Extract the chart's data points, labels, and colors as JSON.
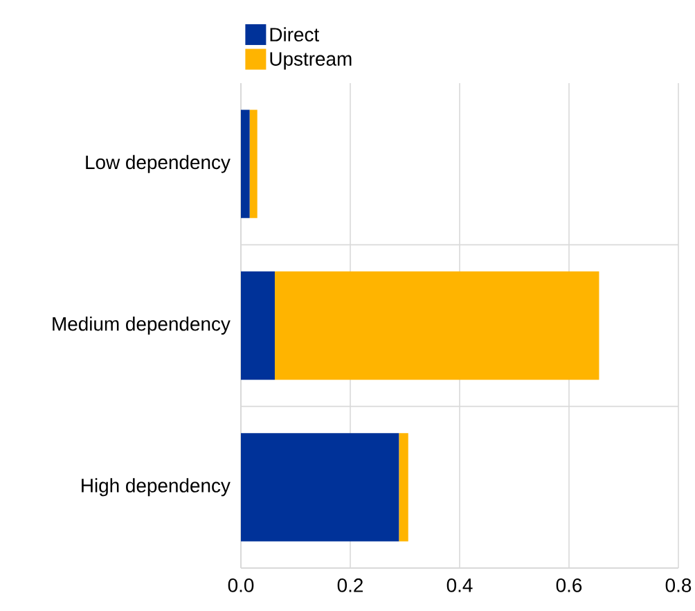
{
  "chart_data": {
    "type": "bar",
    "orientation": "horizontal",
    "stacked": true,
    "categories": [
      "Low dependency",
      "Medium dependency",
      "High dependency"
    ],
    "series": [
      {
        "name": "Direct",
        "color": "#003299",
        "values": [
          0.016,
          0.062,
          0.289
        ]
      },
      {
        "name": "Upstream",
        "color": "#ffb400",
        "values": [
          0.014,
          0.593,
          0.017
        ]
      }
    ],
    "xlim": [
      0,
      0.8
    ],
    "xticks": [
      {
        "value": 0,
        "label": "0.0"
      },
      0.2,
      0.4,
      0.6,
      0.8
    ],
    "grid": true,
    "legend": "top left"
  }
}
